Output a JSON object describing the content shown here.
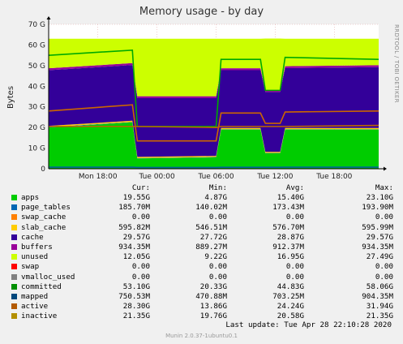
{
  "chart_data": {
    "type": "area",
    "title": "Memory usage - by day",
    "ylabel": "Bytes",
    "ylim": [
      0,
      70
    ],
    "yticks": [
      {
        "v": 0,
        "label": "0"
      },
      {
        "v": 10,
        "label": "10 G"
      },
      {
        "v": 20,
        "label": "20 G"
      },
      {
        "v": 30,
        "label": "30 G"
      },
      {
        "v": 40,
        "label": "40 G"
      },
      {
        "v": 50,
        "label": "50 G"
      },
      {
        "v": 60,
        "label": "60 G"
      },
      {
        "v": 70,
        "label": "70 G"
      }
    ],
    "xlim": [
      0,
      33.5
    ],
    "xticks": [
      {
        "v": 5,
        "label": "Mon 18:00"
      },
      {
        "v": 11,
        "label": "Tue 00:00"
      },
      {
        "v": 17,
        "label": "Tue 06:00"
      },
      {
        "v": 23,
        "label": "Tue 12:00"
      },
      {
        "v": 29,
        "label": "Tue 18:00"
      }
    ],
    "x": [
      0,
      8.5,
      9,
      17,
      17.5,
      21.5,
      22,
      23.5,
      24,
      33.5
    ],
    "stacked": [
      {
        "name": "apps",
        "color": "#00cc00",
        "values": [
          20,
          22.5,
          5,
          5.5,
          19,
          19,
          7.5,
          7.5,
          19,
          19
        ]
      },
      {
        "name": "page_tables",
        "color": "#0066b3",
        "values": [
          0.18,
          0.18,
          0.18,
          0.18,
          0.18,
          0.18,
          0.18,
          0.18,
          0.18,
          0.18
        ]
      },
      {
        "name": "slab_cache",
        "color": "#ffcc00",
        "values": [
          0.6,
          0.6,
          0.55,
          0.55,
          0.6,
          0.6,
          0.55,
          0.55,
          0.6,
          0.6
        ]
      },
      {
        "name": "cache",
        "color": "#330099",
        "values": [
          27,
          27,
          28.5,
          28,
          28,
          28,
          29,
          29,
          29,
          29.5
        ]
      },
      {
        "name": "buffers",
        "color": "#990099",
        "values": [
          0.93,
          0.93,
          0.9,
          0.9,
          0.92,
          0.92,
          0.9,
          0.9,
          0.93,
          0.93
        ]
      },
      {
        "name": "unused",
        "color": "#ccff00",
        "values": [
          14.3,
          11.8,
          27.9,
          27.9,
          14.3,
          14.3,
          25,
          25,
          13.3,
          12.8
        ]
      }
    ],
    "lines": [
      {
        "name": "committed",
        "color": "#00aa00",
        "values": [
          55,
          57.5,
          20.5,
          20.5,
          53,
          53,
          38,
          38,
          54,
          53
        ]
      },
      {
        "name": "active",
        "color": "#cc6600",
        "values": [
          28,
          31,
          13.5,
          13.5,
          27,
          27,
          22,
          22,
          27.5,
          28
        ]
      },
      {
        "name": "inactive",
        "color": "#bb6600",
        "values": [
          20.5,
          20.5,
          20.5,
          20,
          20.5,
          20.5,
          20.5,
          20.5,
          20.5,
          21
        ]
      },
      {
        "name": "mapped",
        "color": "#006699",
        "values": [
          0.75,
          0.75,
          0.6,
          0.6,
          0.7,
          0.7,
          0.7,
          0.7,
          0.75,
          0.75
        ]
      }
    ],
    "columns": [
      "Cur:",
      "Min:",
      "Avg:",
      "Max:"
    ],
    "legend": [
      {
        "name": "apps",
        "color": "#00cc00",
        "cur": "19.55G",
        "min": "4.87G",
        "avg": "15.40G",
        "max": "23.10G"
      },
      {
        "name": "page_tables",
        "color": "#0066b3",
        "cur": "185.70M",
        "min": "140.02M",
        "avg": "173.43M",
        "max": "193.90M"
      },
      {
        "name": "swap_cache",
        "color": "#ff8000",
        "cur": "0.00",
        "min": "0.00",
        "avg": "0.00",
        "max": "0.00"
      },
      {
        "name": "slab_cache",
        "color": "#ffcc00",
        "cur": "595.82M",
        "min": "546.51M",
        "avg": "576.70M",
        "max": "595.99M"
      },
      {
        "name": "cache",
        "color": "#330099",
        "cur": "29.57G",
        "min": "27.72G",
        "avg": "28.87G",
        "max": "29.57G"
      },
      {
        "name": "buffers",
        "color": "#990099",
        "cur": "934.35M",
        "min": "889.27M",
        "avg": "912.37M",
        "max": "934.35M"
      },
      {
        "name": "unused",
        "color": "#ccff00",
        "cur": "12.05G",
        "min": "9.22G",
        "avg": "16.95G",
        "max": "27.49G"
      },
      {
        "name": "swap",
        "color": "#ff0000",
        "cur": "0.00",
        "min": "0.00",
        "avg": "0.00",
        "max": "0.00"
      },
      {
        "name": "vmalloc_used",
        "color": "#808080",
        "cur": "0.00",
        "min": "0.00",
        "avg": "0.00",
        "max": "0.00"
      },
      {
        "name": "committed",
        "color": "#008f00",
        "cur": "53.10G",
        "min": "20.33G",
        "avg": "44.83G",
        "max": "58.06G"
      },
      {
        "name": "mapped",
        "color": "#00487d",
        "cur": "750.53M",
        "min": "470.88M",
        "avg": "703.25M",
        "max": "904.35M"
      },
      {
        "name": "active",
        "color": "#b35a00",
        "cur": "28.30G",
        "min": "13.86G",
        "avg": "24.24G",
        "max": "31.94G"
      },
      {
        "name": "inactive",
        "color": "#b38f00",
        "cur": "21.35G",
        "min": "19.76G",
        "avg": "20.58G",
        "max": "21.35G"
      }
    ]
  },
  "side_text": "RRDTOOL / TOBI OETIKER",
  "footer": {
    "last_update": "Last update: Tue Apr 28 22:10:28 2020",
    "munin": "Munin 2.0.37-1ubuntu0.1"
  }
}
